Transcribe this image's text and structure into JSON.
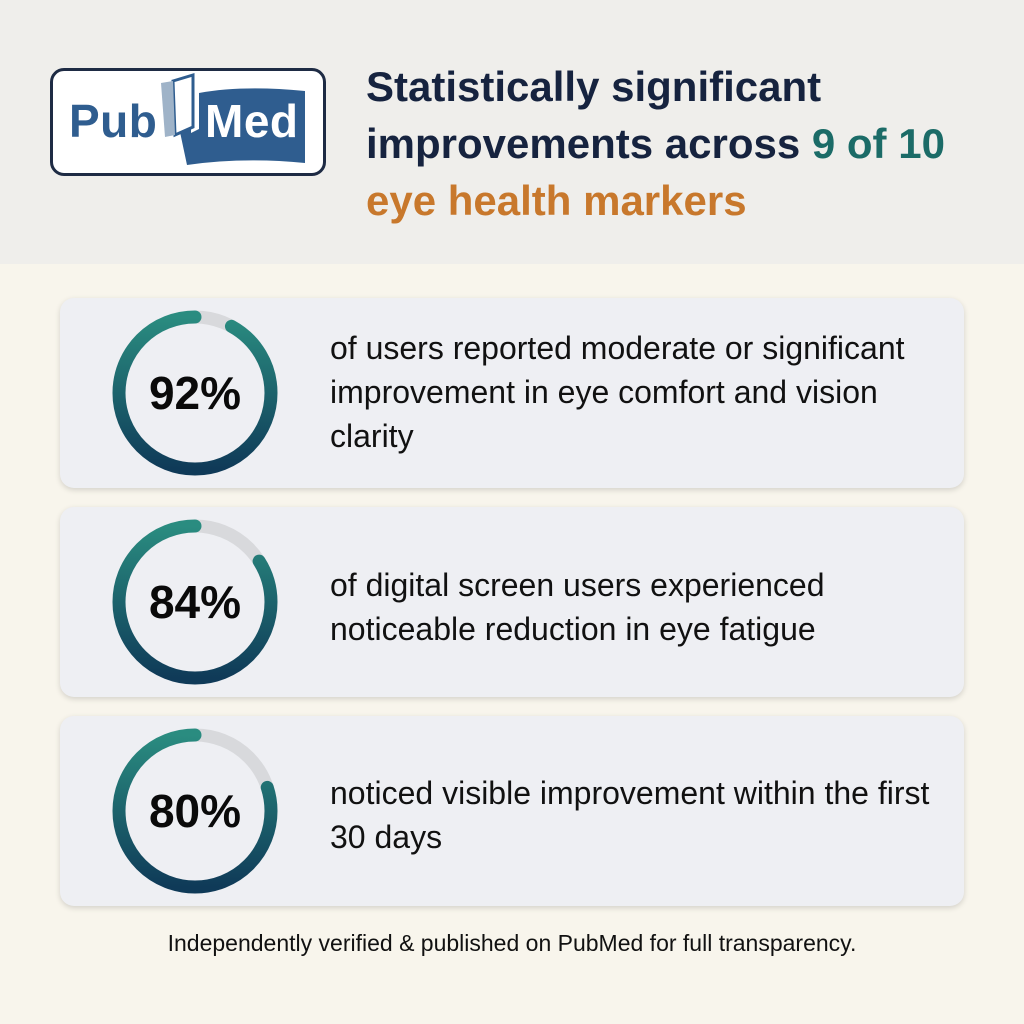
{
  "brand": {
    "logo_part1": "Pub",
    "logo_part2": "Med",
    "brand_blue": "#2f5d8f",
    "logo_border": "#1e2b44"
  },
  "headline": {
    "line1": "Statistically significant",
    "line2_prefix": "improvements across ",
    "highlight_count": "9 of 10",
    "line3": "eye health markers",
    "teal_color": "#1b6b67",
    "orange_color": "#c8782c"
  },
  "stats": [
    {
      "percent_label": "92%",
      "value": 92,
      "text": "of users reported moderate or significant improvement in eye comfort and vision clarity"
    },
    {
      "percent_label": "84%",
      "value": 84,
      "text": "of digital screen users experienced noticeable reduction in eye fatigue"
    },
    {
      "percent_label": "80%",
      "value": 80,
      "text": "noticed visible improvement within the first 30 days"
    }
  ],
  "ring_colors": {
    "start": "#0f3a58",
    "end": "#2a8c80",
    "track": "#d8d9dc"
  },
  "footer": "Independently verified & published on PubMed for full transparency."
}
